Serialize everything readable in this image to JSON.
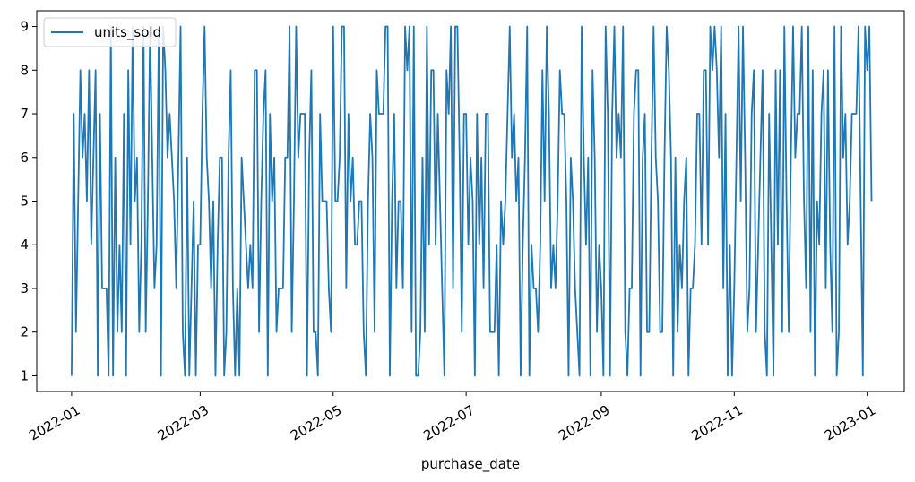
{
  "chart_data": {
    "type": "line",
    "title": "",
    "xlabel": "purchase_date",
    "ylabel": "",
    "x_range": [
      "2021-12-16",
      "2023-01-18"
    ],
    "ylim": [
      0.64,
      9.36
    ],
    "grid": false,
    "legend_position": "upper-left",
    "line_color": "#1f77b4",
    "x_ticks": [
      {
        "date": "2022-01-01",
        "label": "2022-01"
      },
      {
        "date": "2022-03-01",
        "label": "2022-03"
      },
      {
        "date": "2022-05-01",
        "label": "2022-05"
      },
      {
        "date": "2022-07-01",
        "label": "2022-07"
      },
      {
        "date": "2022-09-01",
        "label": "2022-09"
      },
      {
        "date": "2022-11-01",
        "label": "2022-11"
      },
      {
        "date": "2023-01-01",
        "label": "2023-01"
      }
    ],
    "y_ticks": [
      {
        "value": 1,
        "label": "1"
      },
      {
        "value": 2,
        "label": "2"
      },
      {
        "value": 3,
        "label": "3"
      },
      {
        "value": 4,
        "label": "4"
      },
      {
        "value": 5,
        "label": "5"
      },
      {
        "value": 6,
        "label": "6"
      },
      {
        "value": 7,
        "label": "7"
      },
      {
        "value": 8,
        "label": "8"
      },
      {
        "value": 9,
        "label": "9"
      }
    ],
    "series": [
      {
        "name": "units_sold",
        "color": "#1f77b4",
        "start_date": "2022-01-01",
        "step_days": 1,
        "values": [
          1,
          7,
          2,
          5,
          8,
          6,
          7,
          5,
          8,
          4,
          6,
          8,
          1,
          7,
          3,
          3,
          3,
          1,
          9,
          1,
          6,
          2,
          4,
          2,
          7,
          1,
          8,
          4,
          9,
          5,
          6,
          2,
          4,
          9,
          2,
          5,
          9,
          6,
          3,
          4,
          9,
          1,
          9,
          8,
          6,
          7,
          6,
          5,
          3,
          6,
          9,
          2,
          1,
          6,
          1,
          3,
          5,
          1,
          4,
          4,
          7,
          9,
          6,
          5,
          3,
          5,
          1,
          4,
          6,
          6,
          1,
          2,
          6,
          8,
          3,
          1,
          3,
          1,
          6,
          5,
          4,
          3,
          4,
          3,
          8,
          8,
          2,
          5,
          7,
          8,
          1,
          7,
          5,
          6,
          2,
          3,
          3,
          3,
          6,
          6,
          9,
          2,
          5,
          9,
          6,
          7,
          7,
          7,
          1,
          6,
          8,
          2,
          2,
          1,
          7,
          5,
          5,
          5,
          3,
          2,
          9,
          5,
          5,
          6,
          9,
          9,
          3,
          7,
          5,
          6,
          4,
          4,
          5,
          5,
          2,
          1,
          5,
          7,
          6,
          2,
          8,
          7,
          7,
          7,
          9,
          9,
          1,
          5,
          7,
          3,
          5,
          5,
          3,
          9,
          8,
          9,
          2,
          9,
          1,
          1,
          2,
          6,
          2,
          9,
          4,
          8,
          8,
          4,
          7,
          5,
          3,
          1,
          8,
          7,
          9,
          3,
          9,
          9,
          6,
          2,
          7,
          7,
          4,
          6,
          5,
          1,
          7,
          4,
          6,
          3,
          7,
          7,
          2,
          2,
          2,
          4,
          1,
          5,
          4,
          5,
          7,
          9,
          6,
          7,
          5,
          6,
          1,
          4,
          6,
          9,
          1,
          4,
          3,
          3,
          2,
          4,
          8,
          5,
          9,
          7,
          3,
          4,
          3,
          5,
          8,
          7,
          7,
          5,
          1,
          6,
          5,
          3,
          2,
          1,
          9,
          6,
          4,
          6,
          1,
          8,
          6,
          2,
          4,
          3,
          1,
          9,
          7,
          1,
          7,
          9,
          6,
          7,
          6,
          9,
          2,
          1,
          3,
          3,
          7,
          8,
          8,
          1,
          6,
          7,
          2,
          2,
          6,
          9,
          6,
          5,
          2,
          2,
          6,
          9,
          8,
          6,
          1,
          6,
          2,
          4,
          3,
          5,
          6,
          1,
          3,
          3,
          4,
          7,
          7,
          4,
          8,
          8,
          4,
          9,
          8,
          9,
          8,
          6,
          9,
          3,
          7,
          1,
          4,
          1,
          3,
          6,
          9,
          5,
          9,
          6,
          2,
          3,
          7,
          8,
          2,
          4,
          6,
          8,
          2,
          1,
          7,
          4,
          1,
          8,
          4,
          8,
          2,
          9,
          5,
          2,
          6,
          9,
          6,
          7,
          7,
          9,
          5,
          3,
          9,
          2,
          8,
          1,
          5,
          4,
          7,
          8,
          3,
          8,
          4,
          2,
          9,
          1,
          2,
          9,
          6,
          7,
          4,
          5,
          7,
          7,
          7,
          9,
          5,
          1,
          9,
          8,
          9,
          5
        ]
      }
    ]
  }
}
